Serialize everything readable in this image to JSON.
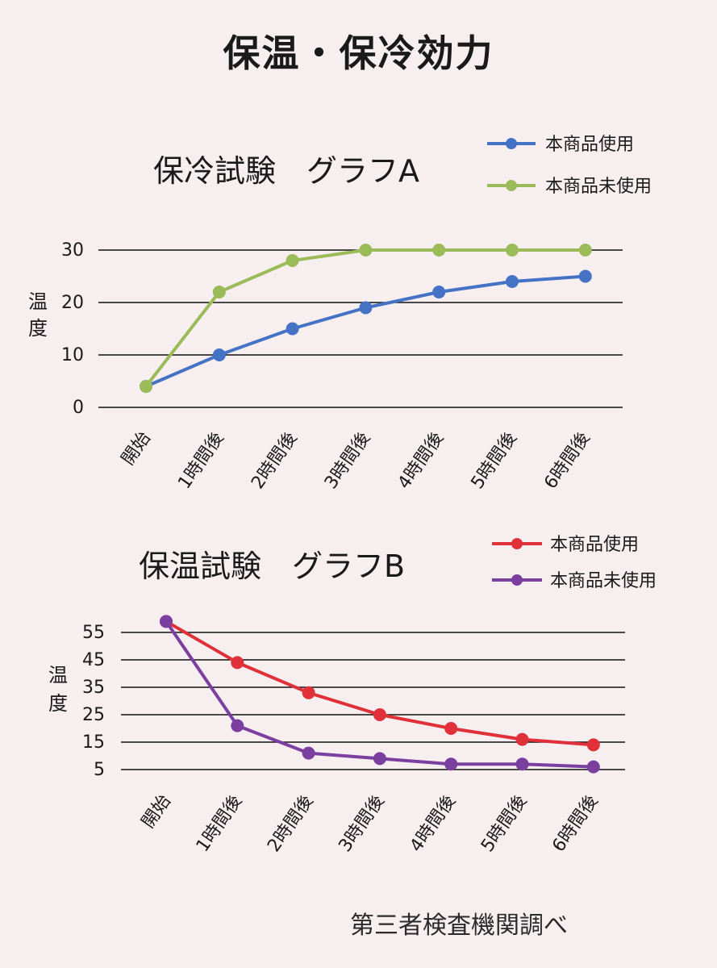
{
  "page": {
    "title": "保温・保冷効力",
    "footer_note": "第三者検査機関調べ"
  },
  "chart_data": [
    {
      "type": "line",
      "title": "保冷試験　グラフA",
      "ylabel": "温度",
      "categories": [
        "開始",
        "1時間後",
        "2時間後",
        "3時間後",
        "4時間後",
        "5時間後",
        "6時間後"
      ],
      "yticks": [
        0,
        10,
        20,
        30
      ],
      "ylim": [
        0,
        30
      ],
      "grid": true,
      "legend_position": "top-right",
      "series": [
        {
          "name": "本商品使用",
          "color": "#4472c4",
          "values": [
            4,
            10,
            15,
            19,
            22,
            24,
            25
          ]
        },
        {
          "name": "本商品未使用",
          "color": "#9bbb59",
          "values": [
            4,
            22,
            28,
            30,
            30,
            30,
            30
          ]
        }
      ]
    },
    {
      "type": "line",
      "title": "保温試験　グラフB",
      "ylabel": "温度",
      "categories": [
        "開始",
        "1時間後",
        "2時間後",
        "3時間後",
        "4時間後",
        "5時間後",
        "6時間後"
      ],
      "yticks": [
        5,
        15,
        25,
        35,
        45,
        55
      ],
      "ylim": [
        5,
        55
      ],
      "grid": true,
      "legend_position": "top-right",
      "series": [
        {
          "name": "本商品使用",
          "color": "#e0303a",
          "values": [
            59,
            44,
            33,
            25,
            20,
            16,
            14
          ]
        },
        {
          "name": "本商品未使用",
          "color": "#7b3fa0",
          "values": [
            59,
            21,
            11,
            9,
            7,
            7,
            6
          ]
        }
      ]
    }
  ]
}
